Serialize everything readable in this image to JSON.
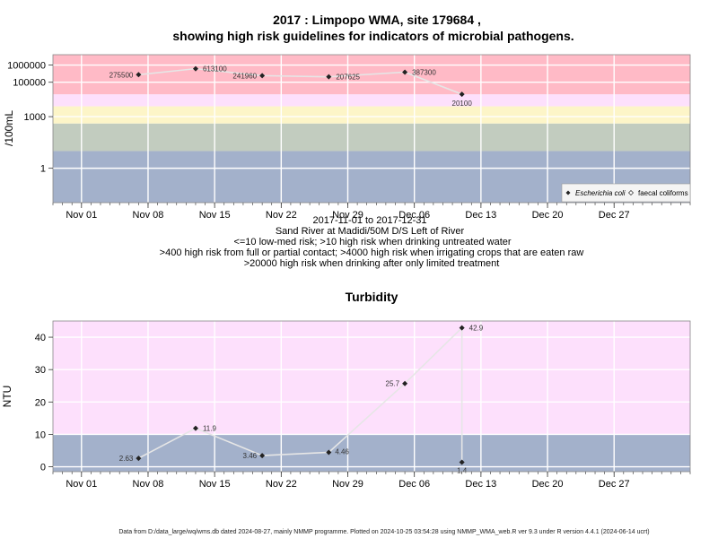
{
  "chart_data": [
    {
      "type": "scatter",
      "title_line1": "2017 : Limpopo WMA, site 179684 ,",
      "title_line2": "showing high risk guidelines for indicators of microbial pathogens.",
      "ylabel": "/100mL",
      "y_scale": "log",
      "yticks": [
        "1000000",
        "100000",
        "1000",
        "1"
      ],
      "x_tick_labels": [
        "Nov 01",
        "Nov 08",
        "Nov 15",
        "Nov 22",
        "Nov 29",
        "Dec 06",
        "Dec 13",
        "Dec 20",
        "Dec 27"
      ],
      "x_ticks": [
        "2017-11-01",
        "2017-11-08",
        "2017-11-15",
        "2017-11-22",
        "2017-11-29",
        "2017-12-06",
        "2017-12-13",
        "2017-12-20",
        "2017-12-27"
      ],
      "xlim": [
        "2017-10-29",
        "2018-01-04"
      ],
      "ylim": [
        0.01,
        4000000
      ],
      "grid": true,
      "bands": [
        {
          "from": 0.01,
          "to": 10,
          "color": "#a3b1cb"
        },
        {
          "from": 10,
          "to": 400,
          "color": "#c2ccbf"
        },
        {
          "from": 400,
          "to": 4000,
          "color": "#fdf5c8"
        },
        {
          "from": 4000,
          "to": 20000,
          "color": "#fde0fc"
        },
        {
          "from": 20000,
          "to": 4000000,
          "color": "#ffbac6"
        }
      ],
      "series": [
        {
          "name": "Escherichia coli",
          "marker": "filled-diamond",
          "x": [
            "2017-11-07",
            "2017-11-13",
            "2017-11-20",
            "2017-11-27",
            "2017-12-05",
            "2017-12-11"
          ],
          "y": [
            275500,
            613100,
            241960,
            207625,
            387300,
            20100
          ],
          "labels": [
            "275500",
            "613100",
            "241960",
            "207625",
            "387300",
            "20100"
          ]
        },
        {
          "name": "faecal coliforms",
          "marker": "open-diamond",
          "x": [],
          "y": []
        }
      ],
      "legend_position": "bottom-right",
      "subtitle_lines": [
        "2017-11-01 to 2017-12-31",
        "Sand River at Madidi/50M D/S Left of River",
        "<=10 low-med risk; >10 high risk when drinking untreated water",
        ">400 high risk from full or partial contact; >4000 high risk when irrigating crops that are eaten raw",
        ">20000 high risk when drinking after only limited treatment"
      ]
    },
    {
      "type": "scatter",
      "title": "Turbidity",
      "ylabel": "NTU",
      "yticks": [
        0,
        10,
        20,
        30,
        40
      ],
      "ylim": [
        -1.5,
        45
      ],
      "x_tick_labels": [
        "Nov 01",
        "Nov 08",
        "Nov 15",
        "Nov 22",
        "Nov 29",
        "Dec 06",
        "Dec 13",
        "Dec 20",
        "Dec 27"
      ],
      "x_ticks": [
        "2017-11-01",
        "2017-11-08",
        "2017-11-15",
        "2017-11-22",
        "2017-11-29",
        "2017-12-06",
        "2017-12-13",
        "2017-12-20",
        "2017-12-27"
      ],
      "xlim": [
        "2017-10-29",
        "2018-01-04"
      ],
      "grid": true,
      "bands": [
        {
          "from": -1.5,
          "to": 10,
          "color": "#a3b1cb"
        },
        {
          "from": 10,
          "to": 45,
          "color": "#fde0fc"
        }
      ],
      "series": [
        {
          "name": "",
          "marker": "filled-diamond",
          "x": [
            "2017-11-07",
            "2017-11-13",
            "2017-11-20",
            "2017-11-27",
            "2017-12-05",
            "2017-12-11",
            "2017-12-11"
          ],
          "y": [
            2.63,
            11.9,
            3.46,
            4.46,
            25.7,
            42.9,
            1.4
          ],
          "labels": [
            "2.63",
            "11.9",
            "3.46",
            "4.46",
            "25.7",
            "42.9",
            "1.4"
          ]
        }
      ]
    }
  ],
  "footer": "Data from D:/data_large/wq/wms.db dated 2024-08-27, mainly NMMP programme. Plotted on 2024-10-25 03:54:28 using NMMP_WMA_web.R ver 9.3 under R version 4.4.1 (2024-06-14 ucrt)"
}
